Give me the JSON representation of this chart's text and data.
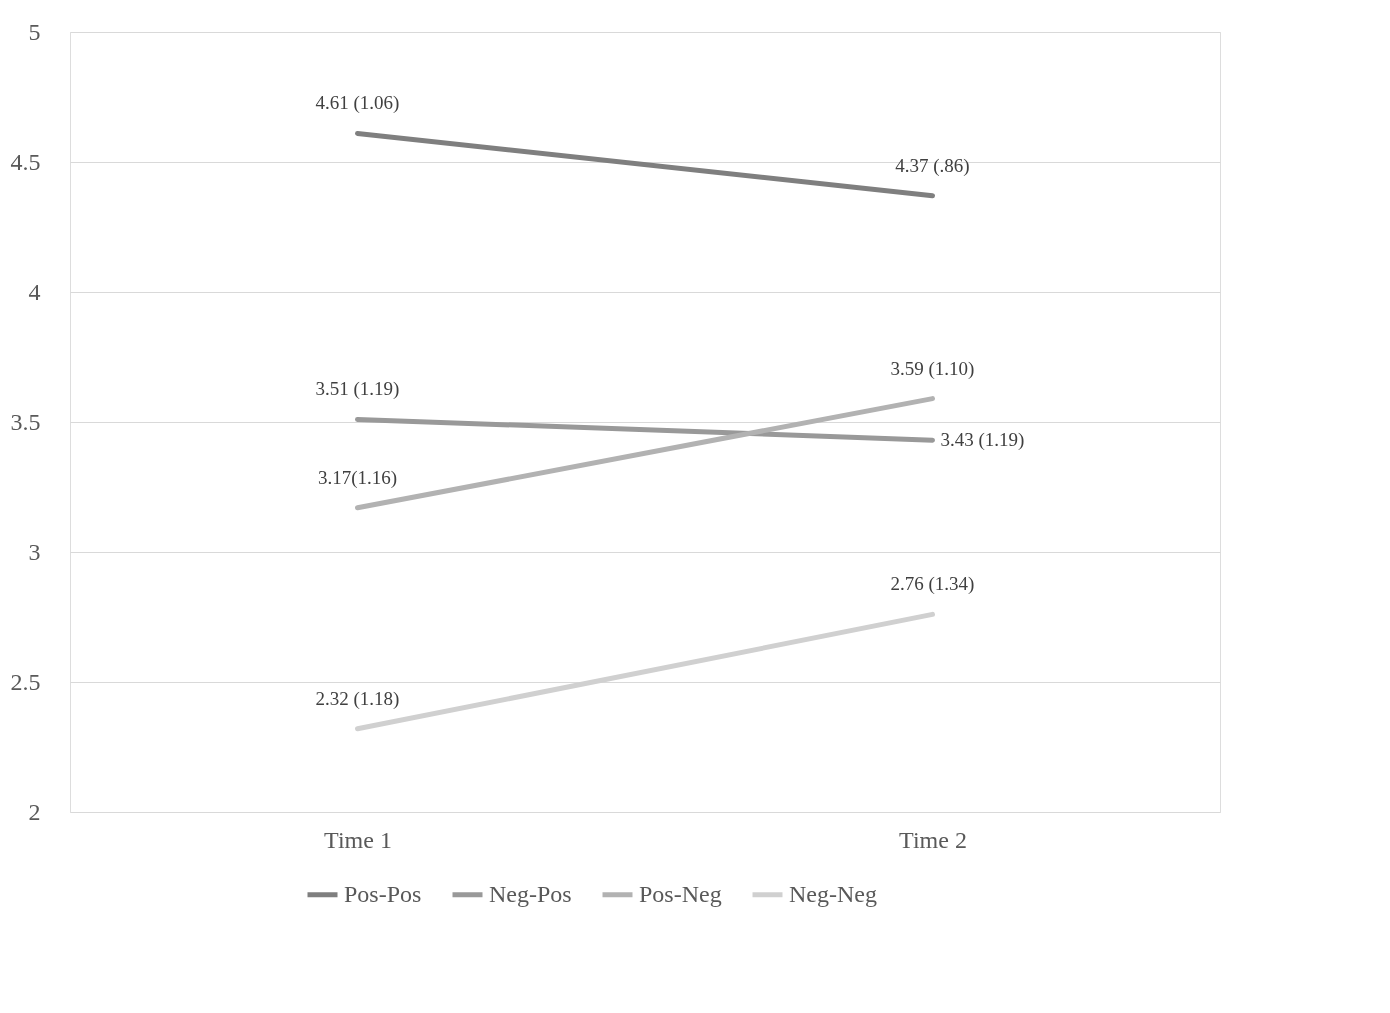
{
  "chart_data": {
    "type": "line",
    "categories": [
      "Time 1",
      "Time 2"
    ],
    "series": [
      {
        "name": "Pos-Pos",
        "color": "#7f7f7f",
        "values": [
          4.61,
          4.37
        ],
        "value_labels": [
          "4.61 (1.06)",
          "4.37 (.86)"
        ]
      },
      {
        "name": "Neg-Pos",
        "color": "#999999",
        "values": [
          3.51,
          3.43
        ],
        "value_labels": [
          "3.51 (1.19)",
          "3.43 (1.19)"
        ]
      },
      {
        "name": "Pos-Neg",
        "color": "#b2b2b2",
        "values": [
          3.17,
          3.59
        ],
        "value_labels": [
          "3.17(1.16)",
          "3.59 (1.10)"
        ]
      },
      {
        "name": "Neg-Neg",
        "color": "#d0d0d0",
        "values": [
          2.32,
          2.76
        ],
        "value_labels": [
          "2.32 (1.18)",
          "2.76 (1.34)"
        ]
      }
    ],
    "ylim": [
      2,
      5
    ],
    "yticks": [
      2,
      2.5,
      3,
      3.5,
      4,
      4.5,
      5
    ],
    "grid": "y",
    "legend": "bottom",
    "marker": "none",
    "line_style": "solid"
  }
}
